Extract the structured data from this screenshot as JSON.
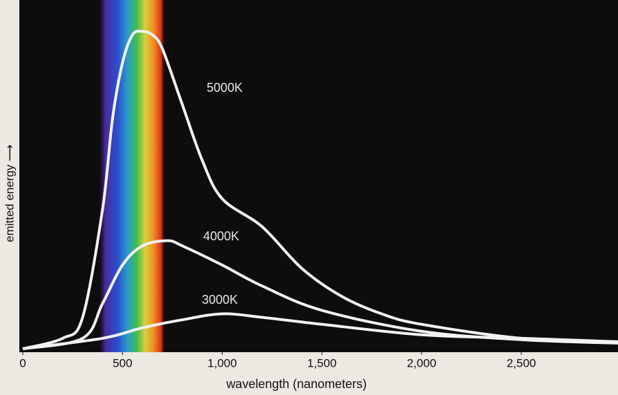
{
  "chart_data": {
    "type": "line",
    "x_label": "wavelength (nanometers)",
    "y_label": "emitted energy ⟶",
    "xlim": [
      0,
      2985
    ],
    "ylim": [
      0,
      100
    ],
    "xticks": [
      0,
      500,
      {
        "value": 1000,
        "label": "1,000"
      },
      {
        "value": 1500,
        "label": "1,500"
      },
      {
        "value": 2000,
        "label": "2,000"
      },
      {
        "value": 2500,
        "label": "2,500"
      }
    ],
    "series": [
      {
        "name": "5000K",
        "color": "#f2f2f2",
        "x": [
          0,
          200,
          300,
          400,
          450,
          500,
          550,
          600,
          650,
          700,
          800,
          900,
          1000,
          1200,
          1400,
          1600,
          1800,
          2000,
          2500,
          2985
        ],
        "values": [
          0,
          3,
          9,
          40,
          66,
          82,
          90,
          91,
          90,
          86,
          70,
          54,
          43,
          35,
          23,
          15,
          10,
          7,
          3,
          2
        ]
      },
      {
        "name": "4000K",
        "color": "#f2f2f2",
        "x": [
          0,
          300,
          400,
          500,
          600,
          725,
          800,
          1000,
          1200,
          1500,
          2000,
          2500,
          2985
        ],
        "values": [
          0,
          3,
          13,
          24,
          29.5,
          31,
          29.5,
          24,
          18,
          11,
          5,
          2.6,
          1.6
        ]
      },
      {
        "name": "3000K",
        "color": "#f2f2f2",
        "x": [
          0,
          400,
          600,
          800,
          1000,
          1200,
          1500,
          2000,
          2500,
          2985
        ],
        "values": [
          0,
          3,
          6,
          8.3,
          10,
          9,
          7,
          4,
          3,
          2
        ]
      }
    ]
  }
}
